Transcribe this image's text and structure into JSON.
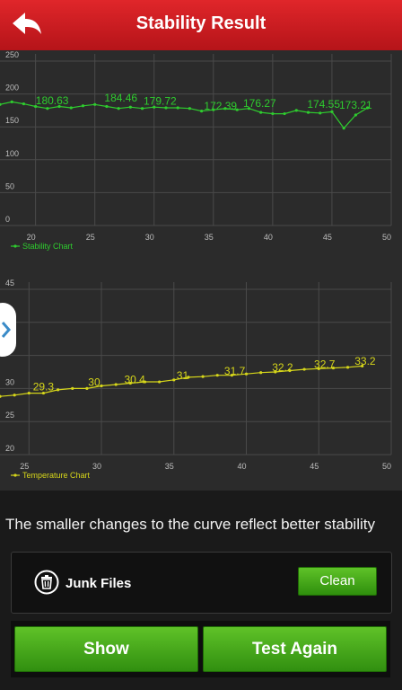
{
  "header": {
    "title": "Stability Result",
    "back_icon": "back-arrow-icon"
  },
  "colors": {
    "header_red": "#d21f25",
    "stability_green": "#2ecc2e",
    "temperature_yellow": "#d6d61a",
    "button_green": "#4fae1e"
  },
  "chart_data": [
    {
      "type": "line",
      "title": "",
      "legend": "Stability Chart",
      "legend_position": "bottom-left",
      "grid": true,
      "xlim": [
        17,
        50
      ],
      "ylim": [
        0,
        250
      ],
      "x_ticks": [
        "20",
        "25",
        "30",
        "35",
        "40",
        "45",
        "50"
      ],
      "y_ticks": [
        "0",
        "50",
        "100",
        "150",
        "200",
        "250"
      ],
      "series": [
        {
          "name": "Stability Chart",
          "color": "#2ecc2e",
          "x": [
            17,
            18,
            19,
            20,
            21,
            22,
            23,
            24,
            25,
            26,
            27,
            28,
            29,
            30,
            31,
            32,
            33,
            34,
            35,
            36,
            37,
            38,
            39,
            40,
            41,
            42,
            43,
            44,
            45,
            46,
            47,
            48
          ],
          "y": [
            184,
            188,
            185,
            181,
            178,
            181,
            179,
            182,
            184,
            181,
            178,
            180,
            178,
            180,
            179,
            179,
            178,
            174,
            176,
            178,
            176,
            178,
            172,
            170,
            170,
            175,
            172,
            171,
            173,
            148,
            168,
            179
          ]
        }
      ],
      "labels": [
        {
          "x": 21.4,
          "y": 180.63,
          "text": "180.63"
        },
        {
          "x": 27.2,
          "y": 184.46,
          "text": "184.46"
        },
        {
          "x": 30.5,
          "y": 179.72,
          "text": "179.72"
        },
        {
          "x": 35.6,
          "y": 172.39,
          "text": "172.39"
        },
        {
          "x": 38.9,
          "y": 176.27,
          "text": "176.27"
        },
        {
          "x": 44.3,
          "y": 174.55,
          "text": "174.55"
        },
        {
          "x": 47.0,
          "y": 173.21,
          "text": "173.21"
        }
      ]
    },
    {
      "type": "line",
      "title": "",
      "legend": "Temperature Chart",
      "legend_position": "bottom-left",
      "grid": true,
      "xlim": [
        23,
        50
      ],
      "ylim": [
        20,
        45
      ],
      "x_ticks": [
        "25",
        "30",
        "35",
        "40",
        "45",
        "50"
      ],
      "y_ticks": [
        "20",
        "25",
        "30",
        "35",
        "40",
        "45"
      ],
      "series": [
        {
          "name": "Temperature Chart",
          "color": "#d6d61a",
          "x": [
            22,
            23,
            24,
            25,
            26,
            27,
            28,
            29,
            30,
            31,
            32,
            33,
            34,
            35,
            36,
            37,
            38,
            39,
            40,
            41,
            42,
            43,
            44,
            45,
            46,
            47,
            48
          ],
          "y": [
            28.8,
            28.8,
            29.0,
            29.3,
            29.3,
            29.8,
            30.0,
            30.0,
            30.4,
            30.6,
            30.8,
            31.0,
            31.0,
            31.3,
            31.7,
            31.8,
            32.0,
            32.0,
            32.2,
            32.4,
            32.5,
            32.7,
            32.9,
            33.0,
            33.1,
            33.2,
            33.4
          ]
        }
      ],
      "labels": [
        {
          "x": 26.0,
          "y": 29.3,
          "text": "29.3"
        },
        {
          "x": 29.5,
          "y": 30,
          "text": "30"
        },
        {
          "x": 32.3,
          "y": 30.4,
          "text": "30.4"
        },
        {
          "x": 35.6,
          "y": 31,
          "text": "31"
        },
        {
          "x": 39.2,
          "y": 31.7,
          "text": "31.7"
        },
        {
          "x": 42.5,
          "y": 32.2,
          "text": "32.2"
        },
        {
          "x": 45.4,
          "y": 32.7,
          "text": "32.7"
        },
        {
          "x": 48.2,
          "y": 33.2,
          "text": "33.2"
        }
      ]
    }
  ],
  "tip": "The smaller changes to the curve reflect better stability",
  "junk": {
    "icon": "trash-icon",
    "label": "Junk Files",
    "clean_label": "Clean"
  },
  "buttons": {
    "show_label": "Show",
    "test_again_label": "Test Again"
  },
  "side_handle_icon": "chevron-right-icon"
}
